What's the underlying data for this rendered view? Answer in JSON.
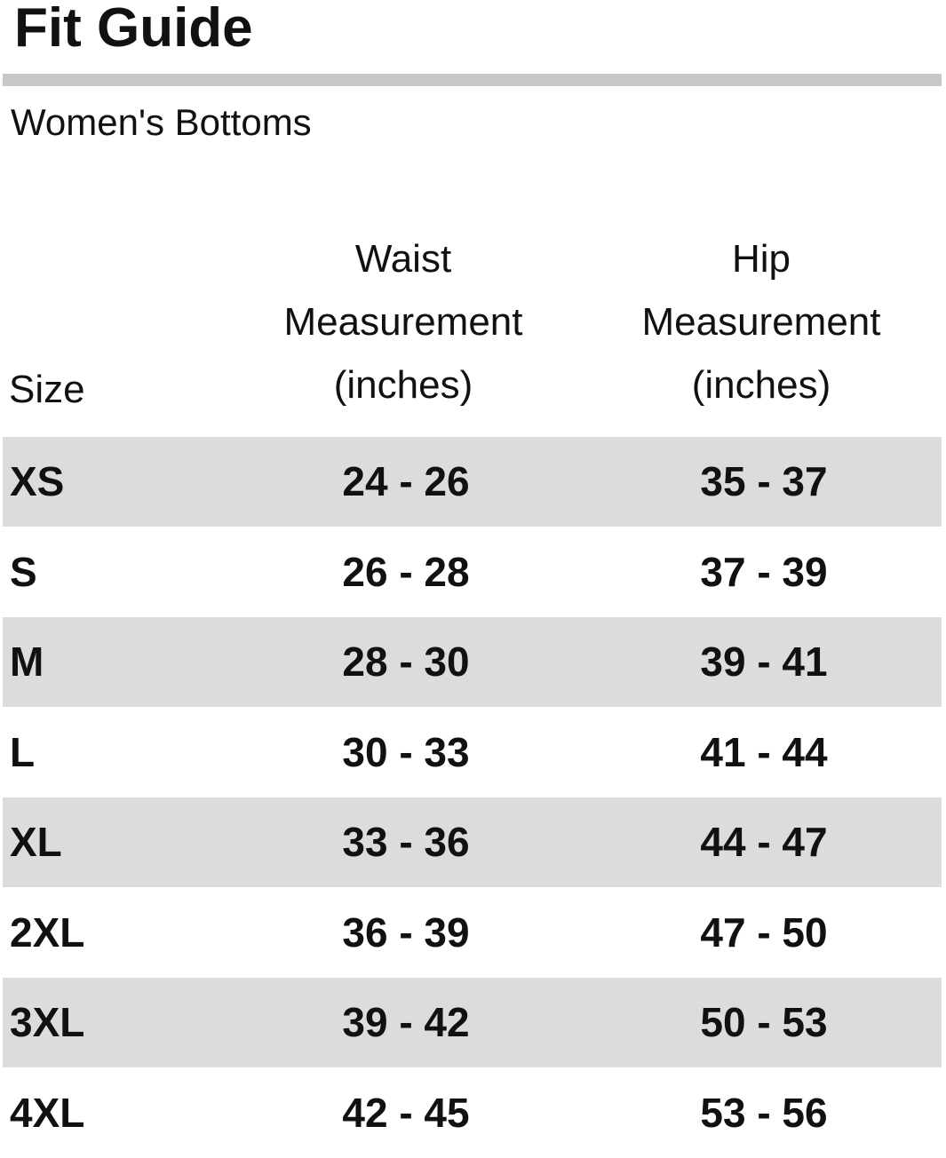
{
  "header": {
    "title": "Fit Guide",
    "subtitle": "Women's Bottoms"
  },
  "table": {
    "columns": [
      [
        "Size"
      ],
      [
        "Waist",
        "Measurement",
        "(inches)"
      ],
      [
        "Hip",
        "Measurement",
        "(inches)"
      ]
    ],
    "rows": [
      [
        "XS",
        "24 - 26",
        "35 - 37"
      ],
      [
        "S",
        "26 - 28",
        "37 - 39"
      ],
      [
        "M",
        "28 - 30",
        "39 - 41"
      ],
      [
        "L",
        "30 - 33",
        "41 - 44"
      ],
      [
        "XL",
        "33 - 36",
        "44 - 47"
      ],
      [
        "2XL",
        "36 - 39",
        "47 - 50"
      ],
      [
        "3XL",
        "39 - 42",
        "50 - 53"
      ],
      [
        "4XL",
        "42 - 45",
        "53 - 56"
      ]
    ]
  }
}
